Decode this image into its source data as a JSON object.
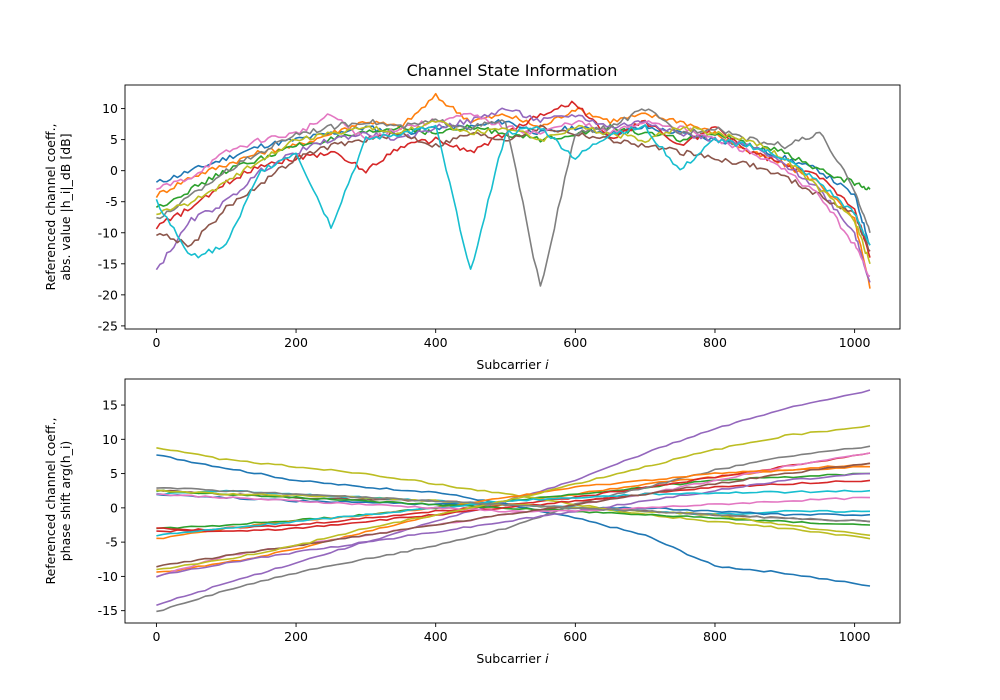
{
  "figure": {
    "title": "Channel State Information"
  },
  "chart_data": [
    {
      "type": "line",
      "title": "Channel State Information",
      "xlabel": "Subcarrier i",
      "ylabel_lines": [
        "Referenced channel coeff.,",
        "abs. value |h_i|_dB [dB]"
      ],
      "xlim": [
        -45,
        1065
      ],
      "ylim": [
        -25.5,
        13.8
      ],
      "xticks": [
        0,
        200,
        400,
        600,
        800,
        1000
      ],
      "yticks": [
        -25,
        -20,
        -15,
        -10,
        -5,
        0,
        5,
        10
      ],
      "x": [
        0,
        50,
        100,
        150,
        200,
        250,
        300,
        350,
        400,
        450,
        500,
        550,
        600,
        650,
        700,
        750,
        800,
        850,
        900,
        950,
        1000,
        1022
      ],
      "series": [
        {
          "color": "#1f77b4",
          "values": [
            -2,
            0,
            2,
            4,
            5,
            6,
            7,
            6,
            7,
            7,
            8,
            6,
            7,
            6,
            7,
            6,
            5,
            4,
            2,
            0,
            -4,
            -12
          ]
        },
        {
          "color": "#ff7f0e",
          "values": [
            -4,
            -1,
            1,
            3,
            4,
            6,
            8,
            7,
            12,
            8,
            9,
            7,
            10,
            8,
            9,
            8,
            6,
            3,
            1,
            -2,
            -8,
            -19
          ]
        },
        {
          "color": "#2ca02c",
          "values": [
            -6,
            -3,
            0,
            2,
            4,
            5,
            6,
            7,
            6,
            7,
            6,
            5,
            6,
            7,
            6,
            5,
            6,
            4,
            3,
            0,
            -2,
            -3
          ]
        },
        {
          "color": "#d62728",
          "values": [
            -9,
            -6,
            -2,
            1,
            2,
            3,
            0,
            4,
            5,
            3,
            6,
            9,
            11,
            5,
            8,
            4,
            7,
            3,
            1,
            -1,
            -6,
            -14
          ]
        },
        {
          "color": "#9467bd",
          "values": [
            -16,
            -8,
            -5,
            0,
            3,
            5,
            6,
            5,
            7,
            8,
            10,
            8,
            9,
            7,
            8,
            6,
            5,
            4,
            1,
            -3,
            -10,
            -18
          ]
        },
        {
          "color": "#8c564b",
          "values": [
            -10,
            -12,
            -6,
            -2,
            2,
            4,
            5,
            6,
            4,
            6,
            5,
            7,
            6,
            5,
            4,
            3,
            2,
            1,
            -1,
            -4,
            -7,
            -13
          ]
        },
        {
          "color": "#e377c2",
          "values": [
            -3,
            -1,
            3,
            5,
            6,
            9,
            5,
            7,
            8,
            9,
            7,
            6,
            8,
            6,
            8,
            7,
            5,
            3,
            0,
            -4,
            -12,
            -17
          ]
        },
        {
          "color": "#7f7f7f",
          "values": [
            -8,
            -4,
            0,
            3,
            6,
            7,
            8,
            7,
            8,
            7,
            8,
            -19,
            6,
            7,
            10,
            6,
            7,
            5,
            4,
            6,
            -3,
            -10
          ]
        },
        {
          "color": "#bcbd22",
          "values": [
            -7,
            -5,
            -2,
            2,
            5,
            6,
            7,
            6,
            8,
            6,
            7,
            5,
            7,
            6,
            5,
            7,
            6,
            5,
            2,
            -3,
            -8,
            -15
          ]
        },
        {
          "color": "#17becf",
          "values": [
            -5,
            -14,
            -12,
            0,
            3,
            -9,
            5,
            6,
            7,
            -16,
            6,
            7,
            2,
            6,
            7,
            0,
            5,
            4,
            2,
            -2,
            -7,
            -12
          ]
        }
      ]
    },
    {
      "type": "line",
      "xlabel": "Subcarrier i",
      "ylabel_lines": [
        "Referenced channel coeff.,",
        "phase shift arg(h_i)"
      ],
      "xlim": [
        -45,
        1065
      ],
      "ylim": [
        -16.8,
        18.8
      ],
      "xticks": [
        0,
        200,
        400,
        600,
        800,
        1000
      ],
      "yticks": [
        -15,
        -10,
        -5,
        0,
        5,
        10,
        15
      ],
      "x": [
        0,
        100,
        200,
        300,
        400,
        500,
        600,
        700,
        800,
        900,
        1022
      ],
      "series": [
        {
          "color": "#1f77b4",
          "values": [
            7.7,
            5.8,
            4.0,
            3.0,
            2.3,
            0.5,
            -1.5,
            -4.0,
            -8.5,
            -9.5,
            -11.4
          ]
        },
        {
          "color": "#ff7f0e",
          "values": [
            -9.5,
            -8.0,
            -6.0,
            -3.5,
            -1.0,
            1.0,
            2.0,
            3.5,
            4.5,
            5.5,
            6.5
          ]
        },
        {
          "color": "#2ca02c",
          "values": [
            -3.0,
            -2.5,
            -1.8,
            -1.0,
            0.0,
            1.0,
            2.0,
            3.0,
            4.0,
            4.5,
            5.0
          ]
        },
        {
          "color": "#d62728",
          "values": [
            -3.5,
            -3.0,
            -2.5,
            -1.5,
            -0.5,
            0.5,
            1.5,
            3.0,
            4.5,
            6.0,
            8.0
          ]
        },
        {
          "color": "#9467bd",
          "values": [
            -14.2,
            -11.0,
            -8.0,
            -5.0,
            -2.0,
            1.0,
            4.0,
            8.0,
            11.5,
            14.5,
            17.2
          ]
        },
        {
          "color": "#8c564b",
          "values": [
            2.5,
            2.0,
            1.5,
            1.2,
            1.0,
            0.5,
            0.0,
            -0.5,
            -1.0,
            -1.5,
            -2.0
          ]
        },
        {
          "color": "#e377c2",
          "values": [
            -10.0,
            -7.0,
            -5.5,
            -4.0,
            -2.5,
            -1.0,
            0.5,
            2.0,
            4.0,
            6.0,
            8.0
          ]
        },
        {
          "color": "#7f7f7f",
          "values": [
            -15.2,
            -12.0,
            -9.5,
            -7.5,
            -5.5,
            -3.0,
            0.5,
            3.0,
            5.5,
            7.5,
            9.0
          ]
        },
        {
          "color": "#bcbd22",
          "values": [
            8.8,
            7.0,
            6.0,
            5.0,
            3.5,
            2.0,
            0.5,
            -1.0,
            -2.0,
            -3.0,
            -4.5
          ]
        },
        {
          "color": "#17becf",
          "values": [
            2.0,
            2.5,
            2.0,
            1.5,
            1.0,
            0.5,
            0.0,
            -0.5,
            -1.0,
            -0.5,
            -0.5
          ]
        },
        {
          "color": "#1f77b4",
          "values": [
            2.0,
            1.5,
            1.0,
            0.8,
            0.5,
            0.5,
            0.0,
            0.0,
            -0.5,
            -1.0,
            -1.0
          ]
        },
        {
          "color": "#ff7f0e",
          "values": [
            -4.5,
            -3.0,
            -2.0,
            -1.0,
            0.0,
            1.5,
            3.0,
            4.0,
            5.0,
            5.5,
            6.0
          ]
        },
        {
          "color": "#2ca02c",
          "values": [
            2.5,
            2.0,
            1.5,
            1.0,
            0.5,
            0.0,
            -0.5,
            -1.0,
            -1.5,
            -2.0,
            -2.5
          ]
        },
        {
          "color": "#d62728",
          "values": [
            -3.0,
            -3.5,
            -3.0,
            -2.0,
            -1.0,
            0.0,
            1.0,
            2.0,
            3.0,
            3.5,
            4.0
          ]
        },
        {
          "color": "#9467bd",
          "values": [
            -10.0,
            -8.0,
            -6.5,
            -5.0,
            -3.5,
            -2.0,
            -0.5,
            1.0,
            2.5,
            4.0,
            5.0
          ]
        },
        {
          "color": "#bcbd22",
          "values": [
            2.5,
            2.0,
            1.8,
            1.5,
            1.0,
            0.5,
            0.0,
            -0.5,
            -1.0,
            -2.5,
            -4.0
          ]
        },
        {
          "color": "#17becf",
          "values": [
            -4.0,
            -3.0,
            -2.0,
            -1.0,
            0.0,
            1.0,
            1.5,
            2.0,
            2.2,
            2.3,
            2.5
          ]
        },
        {
          "color": "#e377c2",
          "values": [
            2.0,
            1.5,
            1.0,
            0.5,
            0.0,
            -0.5,
            -0.5,
            0.0,
            0.5,
            1.0,
            1.5
          ]
        },
        {
          "color": "#8c564b",
          "values": [
            -8.5,
            -7.0,
            -5.5,
            -4.0,
            -2.5,
            -1.0,
            0.5,
            2.0,
            3.5,
            5.0,
            6.5
          ]
        },
        {
          "color": "#bcbd22",
          "values": [
            -9.0,
            -7.5,
            -5.5,
            -3.0,
            -1.0,
            1.0,
            3.5,
            6.0,
            8.5,
            10.5,
            12.0
          ]
        },
        {
          "color": "#7f7f7f",
          "values": [
            3.0,
            2.5,
            2.0,
            1.5,
            1.0,
            0.5,
            0.0,
            -0.5,
            -1.0,
            -1.5,
            -2.0
          ]
        }
      ]
    }
  ]
}
